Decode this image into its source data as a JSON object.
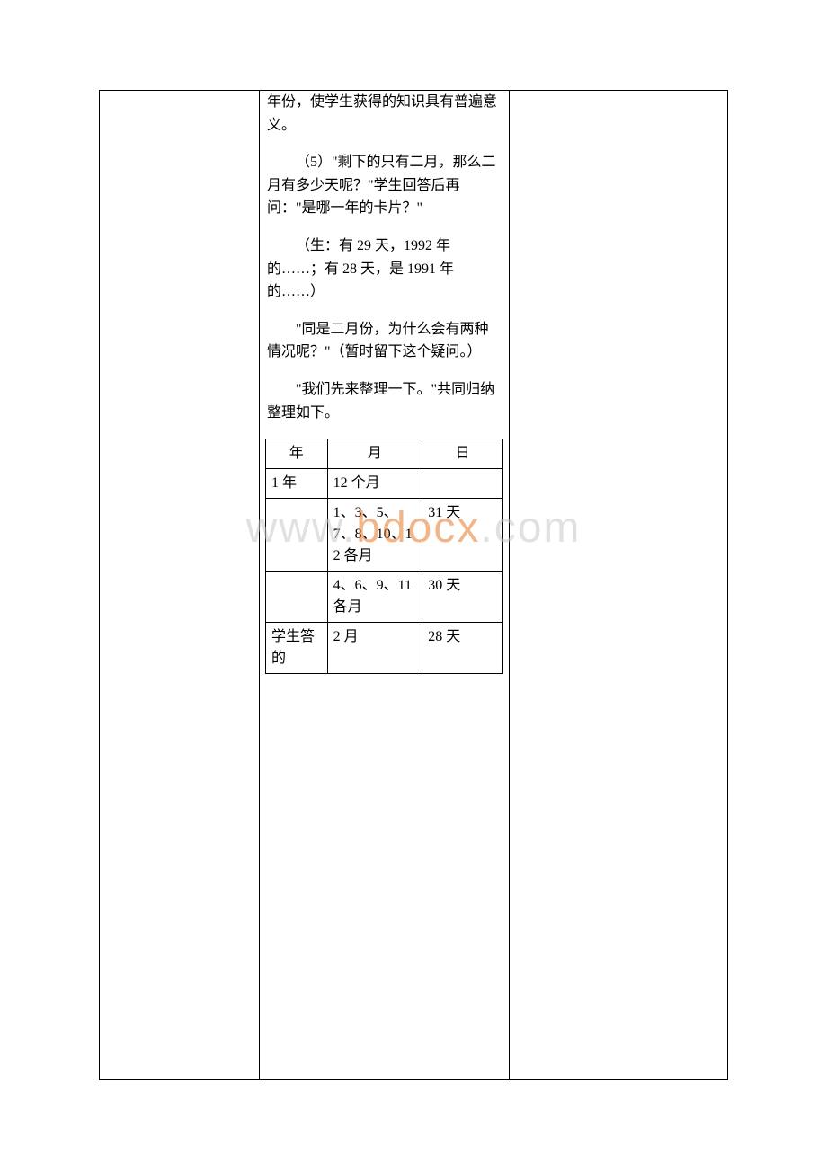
{
  "paragraphs": {
    "p1": "年份，使学生获得的知识具有普遍意义。",
    "p2": "（5）\"剩下的只有二月，那么二月有多少天呢？\"学生回答后再问：\"是哪一年的卡片？\"",
    "p3": "（生：有 29 天，1992 年的……；有 28 天，是 1991 年的……）",
    "p4": "\"同是二月份，为什么会有两种情况呢？\"（暂时留下这个疑问。）",
    "p5": "\"我们先来整理一下。\"共同归纳整理如下。"
  },
  "table": {
    "headers": {
      "c1": "年",
      "c2": "月",
      "c3": "日"
    },
    "rows": [
      {
        "c1": "1 年",
        "c2": "12 个月",
        "c3": ""
      },
      {
        "c1": "",
        "c2": "1、3、5、7、8、10、12 各月",
        "c3": "31 天"
      },
      {
        "c1": "",
        "c2": "4、6、9、11 各月",
        "c3": "30 天"
      },
      {
        "c1": "学生答的",
        "c2": "2 月",
        "c3": "28 天"
      }
    ]
  },
  "watermark": {
    "left": "www.",
    "mid": "bdocx",
    "right": ".com"
  }
}
